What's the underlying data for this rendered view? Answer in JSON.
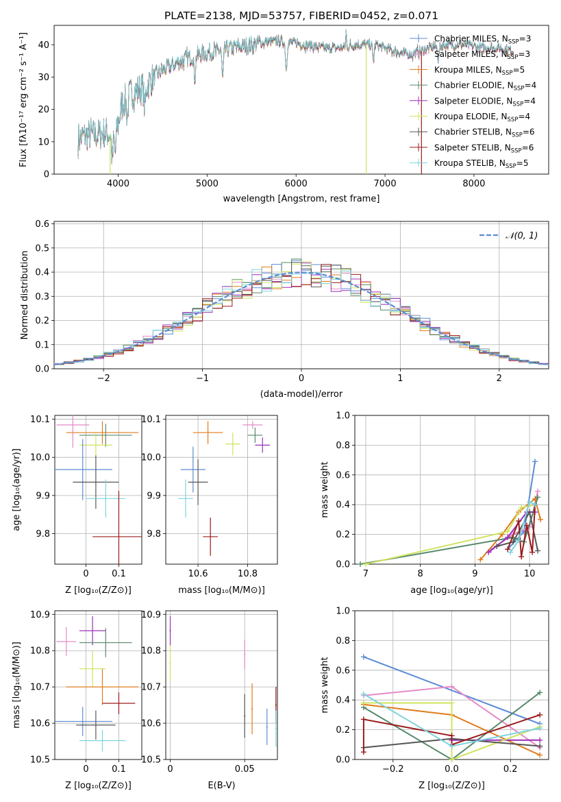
{
  "colors": {
    "chabrier_miles": "#5b8bd6",
    "salpeter_miles": "#e68ac6",
    "kroupa_miles": "#e07b1a",
    "chabrier_elodie": "#55896a",
    "salpeter_elodie": "#9b2fb8",
    "kroupa_elodie": "#cfe35e",
    "chabrier_stelib": "#555555",
    "salpeter_stelib": "#9a1a1a",
    "kroupa_stelib": "#7cd3dc",
    "grid": "#b0b0b0",
    "gauss": "#5b8bd6"
  },
  "chart_data": [
    {
      "id": "spectrum",
      "type": "line",
      "title": "PLATE=2138, MJD=53757, FIBERID=0452, z=0.071",
      "xlabel": "wavelength [Angstrom, rest frame]",
      "ylabel": "Flux [fλ10⁻¹⁷ erg cm⁻² s⁻¹ A⁻¹]",
      "xlim": [
        3280,
        8840
      ],
      "ylim": [
        0,
        46
      ],
      "xticks": [
        4000,
        5000,
        6000,
        7000,
        8000
      ],
      "yticks": [
        0,
        10,
        20,
        30,
        40
      ],
      "legend_position": "top-right",
      "series": [
        {
          "name": "Chabrier MILES, N",
          "sub": "SSP",
          "suffix": "=3",
          "color_key": "chabrier_miles"
        },
        {
          "name": "Salpeter MILES, N",
          "sub": "SSP",
          "suffix": "=3",
          "color_key": "salpeter_miles"
        },
        {
          "name": "Kroupa MILES, N",
          "sub": "SSP",
          "suffix": "=5",
          "color_key": "kroupa_miles"
        },
        {
          "name": "Chabrier ELODIE, N",
          "sub": "SSP",
          "suffix": "=4",
          "color_key": "chabrier_elodie"
        },
        {
          "name": "Salpeter ELODIE, N",
          "sub": "SSP",
          "suffix": "=4",
          "color_key": "salpeter_elodie"
        },
        {
          "name": "Kroupa ELODIE, N",
          "sub": "SSP",
          "suffix": "=4",
          "color_key": "kroupa_elodie"
        },
        {
          "name": "Chabrier STELIB, N",
          "sub": "SSP",
          "suffix": "=6",
          "color_key": "chabrier_stelib"
        },
        {
          "name": "Salpeter STELIB, N",
          "sub": "SSP",
          "suffix": "=6",
          "color_key": "salpeter_stelib"
        },
        {
          "name": "Kroupa STELIB, N",
          "sub": "SSP",
          "suffix": "=5",
          "color_key": "kroupa_stelib"
        }
      ],
      "continuum": {
        "x": [
          3550,
          3650,
          3750,
          3850,
          3950,
          4000,
          4050,
          4150,
          4300,
          4400,
          4500,
          4700,
          4900,
          5100,
          5300,
          5500,
          5700,
          5900,
          6100,
          6300,
          6500,
          6700,
          6900,
          7100,
          7300,
          7500,
          7700,
          7900,
          8100,
          8300,
          8450
        ],
        "y": [
          11,
          12,
          12,
          13,
          12,
          16,
          22,
          25,
          27,
          30,
          32,
          35,
          37,
          38,
          39,
          40,
          41,
          41,
          40,
          39,
          39,
          40,
          40,
          38,
          37,
          39,
          40,
          40,
          39,
          39,
          38
        ]
      },
      "absorption_features": [
        {
          "x": 3934,
          "depth": 8
        },
        {
          "x": 3969,
          "depth": 7
        },
        {
          "x": 4102,
          "depth": 6
        },
        {
          "x": 4300,
          "depth": 7
        },
        {
          "x": 4861,
          "depth": 7
        },
        {
          "x": 5175,
          "depth": 9
        },
        {
          "x": 5890,
          "depth": 9
        },
        {
          "x": 6870,
          "depth": 5
        },
        {
          "x": 7600,
          "depth": 4
        }
      ],
      "emission_features": [
        {
          "x": 6563,
          "height": 5
        }
      ],
      "drops": [
        {
          "x": 3910,
          "color_key": "kroupa_elodie"
        },
        {
          "x": 6790,
          "color_key": "kroupa_elodie"
        },
        {
          "x": 7410,
          "color_key": "salpeter_stelib"
        }
      ]
    },
    {
      "id": "residuals",
      "type": "histogram",
      "xlabel": "(data-model)/error",
      "ylabel": "Normed distribution",
      "xlim": [
        -2.5,
        2.5
      ],
      "ylim": [
        0,
        0.61
      ],
      "xticks": [
        -2,
        -1,
        0,
        1,
        2
      ],
      "yticks": [
        0.0,
        0.1,
        0.2,
        0.3,
        0.4,
        0.5,
        0.6
      ],
      "bin_width": 0.1,
      "bin_start": -2.5,
      "series_color_keys": [
        "chabrier_miles",
        "salpeter_miles",
        "kroupa_miles",
        "chabrier_elodie",
        "salpeter_elodie",
        "kroupa_elodie",
        "chabrier_stelib",
        "salpeter_stelib",
        "kroupa_stelib"
      ],
      "reference": {
        "color_key": "gauss",
        "label_prefix": "𝒩(0, 1)",
        "mu": 0,
        "sigma": 1,
        "legend_position": "top-right"
      }
    },
    {
      "id": "age-vs-z",
      "type": "scatter",
      "xlabel": "Z [log₁₀(Z/Z⊙)]",
      "ylabel": "age  [log₁₀(age/yr)]",
      "xlim": [
        -0.095,
        0.17
      ],
      "ylim": [
        9.72,
        10.11
      ],
      "xticks": [
        0.0,
        0.1
      ],
      "ytick_labels": [
        "9.8",
        "9.9",
        "10.0",
        "10.1"
      ],
      "yticks": [
        9.8,
        9.9,
        10.0,
        10.1
      ],
      "points": [
        {
          "color_key": "salpeter_miles",
          "x": -0.04,
          "y": 10.085,
          "xerr": 0.05,
          "yerr": 0.06
        },
        {
          "color_key": "chabrier_elodie",
          "x": 0.06,
          "y": 10.058,
          "xerr": 0.08,
          "yerr": 0.03
        },
        {
          "color_key": "kroupa_miles",
          "x": 0.05,
          "y": 10.065,
          "xerr": 0.11,
          "yerr": 0.03
        },
        {
          "color_key": "kroupa_elodie",
          "x": 0.03,
          "y": 10.032,
          "xerr": 0.05,
          "yerr": 0.03
        },
        {
          "color_key": "chabrier_miles",
          "x": -0.01,
          "y": 9.968,
          "xerr": 0.09,
          "yerr": 0.08
        },
        {
          "color_key": "chabrier_stelib",
          "x": 0.03,
          "y": 9.935,
          "xerr": 0.07,
          "yerr": 0.07
        },
        {
          "color_key": "kroupa_stelib",
          "x": 0.06,
          "y": 9.892,
          "xerr": 0.06,
          "yerr": 0.05
        },
        {
          "color_key": "salpeter_stelib",
          "x": 0.1,
          "y": 9.792,
          "xerr": 0.08,
          "yerr": 0.12
        }
      ]
    },
    {
      "id": "age-vs-mass",
      "type": "scatter",
      "xlabel": "mass [log₁₀(M/M⊙)]",
      "xlim": [
        10.47,
        10.92
      ],
      "ylim": [
        9.72,
        10.11
      ],
      "xticks": [
        10.6,
        10.8
      ],
      "yticks": [
        9.8,
        9.9,
        10.0,
        10.1
      ],
      "ytick_labels": [
        "9.8",
        "9.9",
        "10.0",
        "10.1"
      ],
      "points": [
        {
          "color_key": "salpeter_miles",
          "x": 10.82,
          "y": 10.085,
          "xerr": 0.04,
          "yerr": 0.01
        },
        {
          "color_key": "kroupa_miles",
          "x": 10.64,
          "y": 10.065,
          "xerr": 0.06,
          "yerr": 0.03
        },
        {
          "color_key": "chabrier_elodie",
          "x": 10.83,
          "y": 10.058,
          "xerr": 0.03,
          "yerr": 0.02
        },
        {
          "color_key": "kroupa_elodie",
          "x": 10.74,
          "y": 10.035,
          "xerr": 0.03,
          "yerr": 0.03
        },
        {
          "color_key": "salpeter_elodie",
          "x": 10.86,
          "y": 10.032,
          "xerr": 0.03,
          "yerr": 0.02
        },
        {
          "color_key": "chabrier_miles",
          "x": 10.58,
          "y": 9.968,
          "xerr": 0.05,
          "yerr": 0.06
        },
        {
          "color_key": "chabrier_stelib",
          "x": 10.6,
          "y": 9.935,
          "xerr": 0.04,
          "yerr": 0.06
        },
        {
          "color_key": "kroupa_stelib",
          "x": 10.55,
          "y": 9.892,
          "xerr": 0.03,
          "yerr": 0.05
        },
        {
          "color_key": "salpeter_stelib",
          "x": 10.65,
          "y": 9.792,
          "xerr": 0.03,
          "yerr": 0.05
        }
      ]
    },
    {
      "id": "weight-vs-age",
      "type": "line",
      "xlabel": "age  [log₁₀(age/yr)]",
      "ylabel": "mass weight",
      "xlim": [
        6.8,
        10.35
      ],
      "ylim": [
        0,
        1
      ],
      "xticks": [
        7,
        8,
        9,
        10
      ],
      "yticks": [
        0.0,
        0.2,
        0.4,
        0.6,
        0.8,
        1.0
      ],
      "series": [
        {
          "color_key": "chabrier_miles",
          "x": [
            9.6,
            9.9,
            10.1
          ],
          "y": [
            0.1,
            0.22,
            0.69
          ]
        },
        {
          "color_key": "salpeter_miles",
          "x": [
            9.3,
            9.7,
            10.0,
            10.15
          ],
          "y": [
            0.1,
            0.2,
            0.25,
            0.49
          ]
        },
        {
          "color_key": "kroupa_miles",
          "x": [
            9.1,
            9.5,
            9.8,
            10.1,
            10.2
          ],
          "y": [
            0.03,
            0.2,
            0.35,
            0.44,
            0.3
          ]
        },
        {
          "color_key": "chabrier_elodie",
          "x": [
            6.9,
            9.7,
            9.9,
            10.15
          ],
          "y": [
            0.0,
            0.18,
            0.15,
            0.45
          ]
        },
        {
          "color_key": "salpeter_elodie",
          "x": [
            9.25,
            9.6,
            9.95,
            10.1
          ],
          "y": [
            0.08,
            0.18,
            0.35,
            0.35
          ]
        },
        {
          "color_key": "kroupa_elodie",
          "x": [
            7.0,
            9.6,
            9.85,
            10.1
          ],
          "y": [
            0.0,
            0.22,
            0.38,
            0.4
          ]
        },
        {
          "color_key": "chabrier_stelib",
          "x": [
            9.4,
            9.7,
            10.0,
            10.15
          ],
          "y": [
            0.12,
            0.15,
            0.35,
            0.09
          ]
        },
        {
          "color_key": "salpeter_stelib",
          "x": [
            9.6,
            9.8,
            9.85,
            9.95,
            10.05,
            10.1
          ],
          "y": [
            0.1,
            0.29,
            0.05,
            0.26,
            0.08,
            0.4
          ]
        },
        {
          "color_key": "kroupa_stelib",
          "x": [
            9.65,
            9.8,
            10.0,
            10.1
          ],
          "y": [
            0.08,
            0.16,
            0.42,
            0.4
          ]
        }
      ]
    },
    {
      "id": "mass-vs-z",
      "type": "scatter",
      "xlabel": "Z [log₁₀(Z/Z⊙)]",
      "ylabel": "mass [log₁₀(M/M⊙)]",
      "xlim": [
        -0.095,
        0.17
      ],
      "ylim": [
        10.5,
        10.91
      ],
      "xticks": [
        0.0,
        0.1
      ],
      "yticks": [
        10.5,
        10.6,
        10.7,
        10.8,
        10.9
      ],
      "ytick_labels": [
        "10.5",
        "10.6",
        "10.7",
        "10.8",
        "10.9"
      ],
      "points": [
        {
          "color_key": "salpeter_elodie",
          "x": 0.02,
          "y": 10.855,
          "xerr": 0.04,
          "yerr": 0.04
        },
        {
          "color_key": "salpeter_miles",
          "x": -0.06,
          "y": 10.825,
          "xerr": 0.03,
          "yerr": 0.04
        },
        {
          "color_key": "chabrier_elodie",
          "x": 0.06,
          "y": 10.822,
          "xerr": 0.08,
          "yerr": 0.04
        },
        {
          "color_key": "kroupa_elodie",
          "x": 0.02,
          "y": 10.75,
          "xerr": 0.04,
          "yerr": 0.05
        },
        {
          "color_key": "kroupa_miles",
          "x": 0.05,
          "y": 10.7,
          "xerr": 0.11,
          "yerr": 0.05
        },
        {
          "color_key": "salpeter_stelib",
          "x": 0.1,
          "y": 10.655,
          "xerr": 0.05,
          "yerr": 0.03
        },
        {
          "color_key": "chabrier_miles",
          "x": -0.01,
          "y": 10.605,
          "xerr": 0.09,
          "yerr": 0.04
        },
        {
          "color_key": "chabrier_stelib",
          "x": 0.03,
          "y": 10.595,
          "xerr": 0.06,
          "yerr": 0.04
        },
        {
          "color_key": "kroupa_stelib",
          "x": 0.05,
          "y": 10.552,
          "xerr": 0.07,
          "yerr": 0.03
        }
      ]
    },
    {
      "id": "mass-vs-ebv",
      "type": "scatter",
      "xlabel": "E(B-V)",
      "xlim": [
        -0.003,
        0.072
      ],
      "ylim": [
        10.5,
        10.91
      ],
      "xticks": [
        0.0,
        0.05
      ],
      "yticks": [
        10.5,
        10.6,
        10.7,
        10.8,
        10.9
      ],
      "ytick_labels": [
        "10.5",
        "10.6",
        "10.7",
        "10.8",
        "10.9"
      ],
      "points": [
        {
          "color_key": "salpeter_elodie",
          "x": 0.0,
          "y": 10.855,
          "xerr": 0.0005,
          "yerr": 0.04
        },
        {
          "color_key": "kroupa_elodie",
          "x": 0.0,
          "y": 10.765,
          "xerr": 0.0005,
          "yerr": 0.05
        },
        {
          "color_key": "salpeter_miles",
          "x": 0.05,
          "y": 10.79,
          "xerr": 0.0005,
          "yerr": 0.04
        },
        {
          "color_key": "kroupa_miles",
          "x": 0.055,
          "y": 10.64,
          "xerr": 0.0005,
          "yerr": 0.07
        },
        {
          "color_key": "chabrier_stelib",
          "x": 0.05,
          "y": 10.62,
          "xerr": 0.0005,
          "yerr": 0.06
        },
        {
          "color_key": "chabrier_miles",
          "x": 0.065,
          "y": 10.59,
          "xerr": 0.0005,
          "yerr": 0.05
        },
        {
          "color_key": "salpeter_stelib",
          "x": 0.071,
          "y": 10.65,
          "xerr": 0.0005,
          "yerr": 0.05
        },
        {
          "color_key": "kroupa_stelib",
          "x": 0.071,
          "y": 10.585,
          "xerr": 0.0005,
          "yerr": 0.05
        }
      ]
    },
    {
      "id": "weight-vs-z",
      "type": "line",
      "xlabel": "Z [log₁₀(Z/Z⊙)]",
      "ylabel": "mass weight",
      "xlim": [
        -0.33,
        0.33
      ],
      "ylim": [
        0,
        1
      ],
      "xticks": [
        -0.2,
        0.0,
        0.2
      ],
      "xtick_labels": [
        "−0.2",
        "0.0",
        "0.2"
      ],
      "yticks": [
        0.0,
        0.2,
        0.4,
        0.6,
        0.8,
        1.0
      ],
      "series": [
        {
          "color_key": "chabrier_miles",
          "x": [
            -0.3,
            0.3
          ],
          "y": [
            0.69,
            0.24
          ]
        },
        {
          "color_key": "salpeter_miles",
          "x": [
            -0.3,
            0.0,
            0.3
          ],
          "y": [
            0.43,
            0.49,
            0.08
          ]
        },
        {
          "color_key": "kroupa_miles",
          "x": [
            -0.3,
            0.0,
            0.3
          ],
          "y": [
            0.37,
            0.3,
            0.03
          ]
        },
        {
          "color_key": "chabrier_elodie",
          "x": [
            -0.3,
            0.0,
            0.3
          ],
          "y": [
            0.35,
            0.0,
            0.45
          ]
        },
        {
          "color_key": "salpeter_elodie",
          "x": [
            0.0,
            0.3
          ],
          "y": [
            0.13,
            0.13
          ]
        },
        {
          "color_key": "kroupa_elodie",
          "x": [
            -0.3,
            0.0,
            0.0,
            0.3
          ],
          "y": [
            0.38,
            0.38,
            0.0,
            0.22
          ]
        },
        {
          "color_key": "chabrier_stelib",
          "x": [
            -0.3,
            0.0,
            0.3
          ],
          "y": [
            0.08,
            0.14,
            0.09
          ]
        },
        {
          "color_key": "salpeter_stelib",
          "x": [
            -0.3,
            -0.3,
            0.0,
            0.0,
            0.3
          ],
          "y": [
            0.05,
            0.27,
            0.16,
            0.1,
            0.3
          ]
        },
        {
          "color_key": "kroupa_stelib",
          "x": [
            -0.3,
            0.0,
            0.3
          ],
          "y": [
            0.44,
            0.09,
            0.21
          ]
        }
      ]
    }
  ]
}
